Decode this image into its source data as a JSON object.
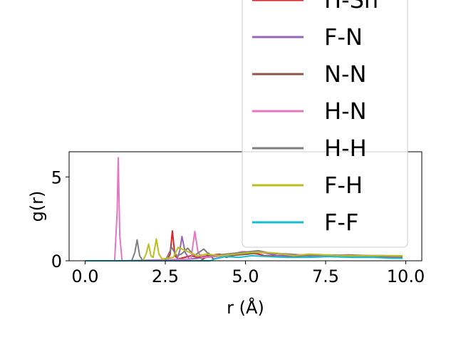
{
  "chart_data": {
    "type": "line",
    "xlabel": "r (Å)",
    "ylabel": "g(r)",
    "xlim": [
      -0.5,
      10.5
    ],
    "ylim": [
      0,
      6.5
    ],
    "xticks": [
      0.0,
      2.5,
      5.0,
      7.5,
      10.0
    ],
    "xtick_labels": [
      "0.0",
      "2.5",
      "5.0",
      "7.5",
      "10.0"
    ],
    "yticks": [
      0,
      5
    ],
    "ytick_labels": [
      "0",
      "5"
    ],
    "grid": false,
    "legend_position": "upper-right",
    "series": [
      {
        "name": "H-Sn",
        "color": "#d62728",
        "x": [
          0,
          2.55,
          2.65,
          2.72,
          2.8,
          2.9,
          3.3,
          3.5,
          4.2,
          4.4,
          5.0,
          5.4,
          5.6,
          6.2,
          7.0,
          7.8,
          8.6,
          9.3,
          9.9
        ],
        "y": [
          0,
          0,
          0.4,
          1.78,
          0.3,
          0.1,
          0.3,
          0.2,
          0.4,
          0.2,
          0.5,
          0.4,
          0.3,
          0.25,
          0.3,
          0.25,
          0.3,
          0.3,
          0.2
        ]
      },
      {
        "name": "F-N",
        "color": "#9467bd",
        "x": [
          0,
          2.85,
          2.95,
          3.02,
          3.12,
          3.25,
          3.8,
          4.3,
          4.8,
          5.5,
          6.0,
          6.7,
          7.4,
          8.1,
          8.8,
          9.5,
          9.9
        ],
        "y": [
          0,
          0,
          0.6,
          1.45,
          0.5,
          0.1,
          0.2,
          0.3,
          0.4,
          0.5,
          0.3,
          0.3,
          0.25,
          0.3,
          0.25,
          0.2,
          0.2
        ]
      },
      {
        "name": "N-N",
        "color": "#8c564b",
        "x": [
          0,
          3.6,
          3.75,
          3.85,
          4.0,
          4.5,
          5.1,
          5.5,
          6.1,
          6.8,
          7.5,
          8.2,
          8.9,
          9.5,
          9.9
        ],
        "y": [
          0,
          0,
          0.2,
          0.45,
          0.1,
          0.3,
          0.4,
          0.5,
          0.4,
          0.3,
          0.3,
          0.35,
          0.3,
          0.25,
          0.2
        ]
      },
      {
        "name": "H-N",
        "color": "#e377c2",
        "x": [
          0,
          0.92,
          1.0,
          1.03,
          1.08,
          1.15,
          3.3,
          3.42,
          3.52,
          3.65,
          4.4,
          4.9,
          5.3,
          5.8,
          6.4,
          7.1,
          7.8,
          8.5,
          9.2,
          9.9
        ],
        "y": [
          0,
          0,
          3.0,
          6.15,
          1.5,
          0,
          0.1,
          1.75,
          0.5,
          0.2,
          0.3,
          0.55,
          0.5,
          0.45,
          0.4,
          0.3,
          0.35,
          0.3,
          0.3,
          0.25
        ]
      },
      {
        "name": "H-H",
        "color": "#7f7f7f",
        "x": [
          0,
          1.45,
          1.55,
          1.62,
          1.7,
          1.8,
          2.5,
          2.7,
          2.85,
          3.0,
          3.2,
          3.4,
          3.7,
          3.9,
          4.4,
          4.9,
          5.4,
          5.8,
          6.3,
          6.9,
          7.6,
          8.3,
          9.0,
          9.6,
          9.9
        ],
        "y": [
          0,
          0,
          0.5,
          1.25,
          0.3,
          0,
          0,
          0.8,
          0.3,
          0.4,
          0.75,
          0.3,
          0.7,
          0.3,
          0.4,
          0.5,
          0.6,
          0.45,
          0.4,
          0.3,
          0.35,
          0.3,
          0.3,
          0.3,
          0.25
        ]
      },
      {
        "name": "F-H",
        "color": "#bcbd22",
        "x": [
          0,
          1.8,
          1.9,
          1.98,
          2.05,
          2.12,
          2.22,
          2.3,
          2.4,
          2.75,
          2.9,
          3.5,
          3.8,
          4.2,
          4.7,
          5.2,
          5.6,
          6.0,
          6.5,
          7.0,
          7.5,
          8.0,
          8.6,
          9.2,
          9.9
        ],
        "y": [
          0,
          0,
          0.4,
          1.0,
          0.3,
          0.2,
          1.3,
          0.4,
          0.1,
          0.2,
          0.8,
          0.3,
          0.4,
          0.3,
          0.4,
          0.5,
          0.5,
          0.45,
          0.3,
          0.4,
          0.35,
          0.3,
          0.3,
          0.3,
          0.3
        ]
      },
      {
        "name": "F-F",
        "color": "#17becf",
        "x": [
          0,
          3.9,
          4.1,
          4.4,
          4.8,
          5.2,
          5.7,
          6.3,
          7.0,
          7.6,
          8.3,
          9.0,
          9.6,
          9.9
        ],
        "y": [
          0,
          0,
          0.15,
          0.25,
          0.2,
          0.3,
          0.25,
          0.2,
          0.2,
          0.25,
          0.2,
          0.2,
          0.15,
          0.15
        ]
      }
    ]
  }
}
